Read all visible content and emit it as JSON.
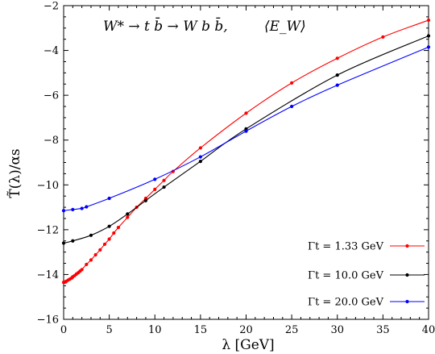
{
  "chart_data": {
    "type": "line",
    "title": "W* → t b̄ → W b b̄,",
    "annotation": "⟨E_W⟩",
    "xlabel": "λ [GeV]",
    "ylabel": "T̃(λ)/αs",
    "xlim": [
      0,
      40
    ],
    "ylim": [
      -16,
      -2
    ],
    "xticks": [
      0,
      5,
      10,
      15,
      20,
      25,
      30,
      35,
      40
    ],
    "yticks": [
      -16,
      -14,
      -12,
      -10,
      -8,
      -6,
      -4,
      -2
    ],
    "legend_position": "bottom-right",
    "series": [
      {
        "name": "Γt = 1.33 GeV",
        "color": "#ff0000",
        "x": [
          0,
          0.1,
          0.2,
          0.3,
          0.5,
          0.7,
          0.9,
          1.0,
          1.2,
          1.4,
          1.6,
          1.8,
          2.0,
          2.5,
          3.0,
          3.5,
          4.0,
          4.5,
          5.0,
          5.5,
          6.0,
          7.0,
          8.0,
          9.0,
          10.0,
          11.0,
          12.0,
          15.0,
          20.0,
          25.0,
          30.0,
          35.0,
          40.0
        ],
        "y": [
          -14.35,
          -14.34,
          -14.33,
          -14.3,
          -14.25,
          -14.2,
          -14.15,
          -14.1,
          -14.05,
          -13.98,
          -13.92,
          -13.85,
          -13.78,
          -13.55,
          -13.35,
          -13.12,
          -12.9,
          -12.65,
          -12.42,
          -12.15,
          -11.9,
          -11.45,
          -11.0,
          -10.6,
          -10.2,
          -9.8,
          -9.4,
          -8.35,
          -6.8,
          -5.45,
          -4.35,
          -3.4,
          -2.65
        ]
      },
      {
        "name": "Γt = 10.0 GeV",
        "color": "#000000",
        "x": [
          0,
          1,
          3,
          5,
          7,
          9,
          11,
          15,
          20,
          30,
          40
        ],
        "y": [
          -12.6,
          -12.5,
          -12.25,
          -11.85,
          -11.3,
          -10.7,
          -10.1,
          -8.95,
          -7.5,
          -5.1,
          -3.35
        ]
      },
      {
        "name": "Γt = 20.0 GeV",
        "color": "#0000ff",
        "x": [
          0,
          1,
          2,
          2.5,
          5,
          10,
          15,
          20,
          25,
          30,
          40
        ],
        "y": [
          -11.15,
          -11.1,
          -11.05,
          -10.98,
          -10.6,
          -9.75,
          -8.75,
          -7.6,
          -6.5,
          -5.55,
          -3.85
        ]
      }
    ]
  }
}
